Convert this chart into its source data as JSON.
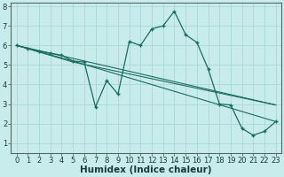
{
  "xlabel": "Humidex (Indice chaleur)",
  "bg_color": "#c8ecec",
  "grid_color": "#a8d8d8",
  "line_color": "#1a6b60",
  "xlim_min": -0.5,
  "xlim_max": 23.5,
  "ylim_min": 0.5,
  "ylim_max": 8.2,
  "xticks": [
    0,
    1,
    2,
    3,
    4,
    5,
    6,
    7,
    8,
    9,
    10,
    11,
    12,
    13,
    14,
    15,
    16,
    17,
    18,
    19,
    20,
    21,
    22,
    23
  ],
  "yticks": [
    1,
    2,
    3,
    4,
    5,
    6,
    7,
    8
  ],
  "tick_fontsize": 6.0,
  "label_fontsize": 7.5,
  "series1_x": [
    0,
    1,
    2,
    3,
    4,
    5,
    6,
    7,
    8,
    9,
    10,
    11,
    12,
    13,
    14,
    15,
    16,
    17,
    18,
    19,
    20,
    21,
    22,
    23
  ],
  "series1_y": [
    6.0,
    5.85,
    5.7,
    5.6,
    5.5,
    5.2,
    5.15,
    2.85,
    4.2,
    3.5,
    6.2,
    6.0,
    6.85,
    7.0,
    7.75,
    6.55,
    6.15,
    4.8,
    3.0,
    2.95,
    1.75,
    1.4,
    1.6,
    2.1
  ],
  "line2_x": [
    0,
    5,
    23
  ],
  "line2_y": [
    6.0,
    5.2,
    2.1
  ],
  "line3_x": [
    0,
    5,
    23
  ],
  "line3_y": [
    6.0,
    5.15,
    2.95
  ],
  "line4_x": [
    0,
    23
  ],
  "line4_y": [
    6.0,
    2.95
  ]
}
